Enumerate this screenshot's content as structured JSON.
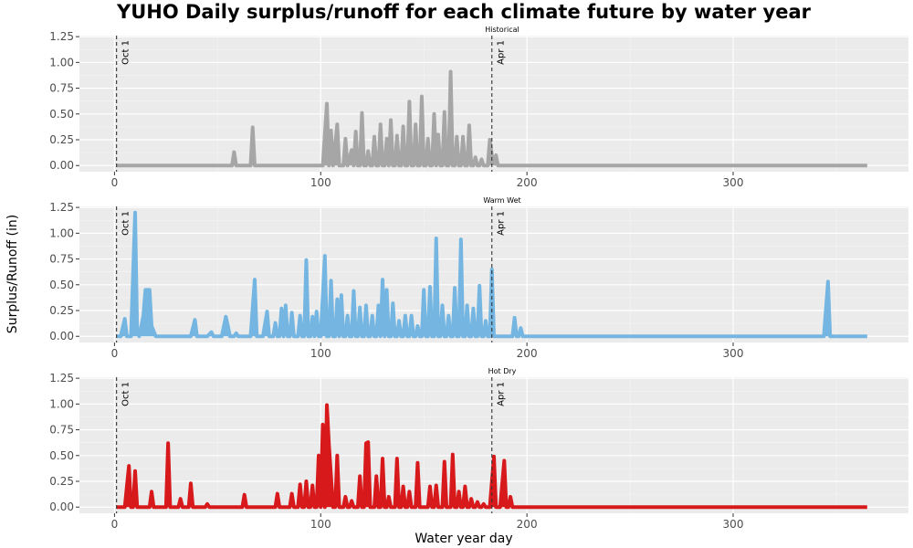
{
  "title": "YUHO Daily surplus/runoff for each climate future by water year",
  "xlabel": "Water year day",
  "ylabel": "Surplus/Runoff (in)",
  "chart_data": [
    {
      "type": "area",
      "panel_title": "Historical",
      "color": "#A6A6A6",
      "xlim": [
        -17,
        385
      ],
      "ylim": [
        -0.06,
        1.26
      ],
      "x_ticks": [
        0,
        100,
        200,
        300
      ],
      "y_ticks": [
        "0.00",
        "0.25",
        "0.50",
        "0.75",
        "1.00",
        "1.25"
      ],
      "vlines": [
        {
          "x": 1,
          "label": "Oct 1"
        },
        {
          "x": 183,
          "label": "Apr 1"
        }
      ],
      "x_range": [
        1,
        365
      ],
      "points": [
        [
          57,
          0
        ],
        [
          58,
          0.13
        ],
        [
          59,
          0
        ],
        [
          66,
          0
        ],
        [
          67,
          0.37
        ],
        [
          68,
          0
        ],
        [
          101,
          0
        ],
        [
          103,
          0.6
        ],
        [
          104,
          0
        ],
        [
          105,
          0.34
        ],
        [
          106,
          0
        ],
        [
          108,
          0.4
        ],
        [
          109,
          0
        ],
        [
          111,
          0
        ],
        [
          112,
          0.26
        ],
        [
          113,
          0
        ],
        [
          115,
          0.15
        ],
        [
          116,
          0
        ],
        [
          117,
          0.33
        ],
        [
          118,
          0
        ],
        [
          119,
          0
        ],
        [
          120,
          0.51
        ],
        [
          121,
          0
        ],
        [
          122,
          0
        ],
        [
          123,
          0.14
        ],
        [
          124,
          0
        ],
        [
          125,
          0
        ],
        [
          126,
          0.28
        ],
        [
          127,
          0
        ],
        [
          128,
          0
        ],
        [
          129,
          0.4
        ],
        [
          130,
          0
        ],
        [
          131,
          0
        ],
        [
          132,
          0.26
        ],
        [
          133,
          0
        ],
        [
          134,
          0.44
        ],
        [
          135,
          0
        ],
        [
          136,
          0
        ],
        [
          137,
          0.29
        ],
        [
          138,
          0
        ],
        [
          139,
          0
        ],
        [
          140,
          0.38
        ],
        [
          141,
          0
        ],
        [
          142,
          0
        ],
        [
          143,
          0.62
        ],
        [
          144,
          0
        ],
        [
          145,
          0
        ],
        [
          146,
          0.4
        ],
        [
          147,
          0
        ],
        [
          148,
          0
        ],
        [
          149,
          0.67
        ],
        [
          150,
          0
        ],
        [
          151,
          0
        ],
        [
          152,
          0.26
        ],
        [
          153,
          0
        ],
        [
          154,
          0
        ],
        [
          155,
          0.5
        ],
        [
          156,
          0
        ],
        [
          157,
          0.3
        ],
        [
          158,
          0
        ],
        [
          159,
          0
        ],
        [
          160,
          0.52
        ],
        [
          161,
          0
        ],
        [
          162,
          0
        ],
        [
          163,
          0.91
        ],
        [
          164,
          0
        ],
        [
          165,
          0
        ],
        [
          166,
          0.28
        ],
        [
          167,
          0
        ],
        [
          168,
          0
        ],
        [
          169,
          0.28
        ],
        [
          170,
          0
        ],
        [
          171,
          0
        ],
        [
          172,
          0.39
        ],
        [
          173,
          0
        ],
        [
          174,
          0
        ],
        [
          175,
          0.08
        ],
        [
          176,
          0
        ],
        [
          177,
          0
        ],
        [
          178,
          0.06
        ],
        [
          179,
          0
        ],
        [
          181,
          0
        ],
        [
          182,
          0.25
        ],
        [
          183,
          0.1
        ],
        [
          184,
          0.03
        ],
        [
          185,
          0.1
        ],
        [
          186,
          0
        ]
      ]
    },
    {
      "type": "area",
      "panel_title": "Warm Wet",
      "color": "#74B6E1",
      "xlim": [
        -17,
        385
      ],
      "ylim": [
        -0.06,
        1.26
      ],
      "x_ticks": [
        0,
        100,
        200,
        300
      ],
      "y_ticks": [
        "0.00",
        "0.25",
        "0.50",
        "0.75",
        "1.00",
        "1.25"
      ],
      "vlines": [
        {
          "x": 1,
          "label": "Oct 1"
        },
        {
          "x": 183,
          "label": "Apr 1"
        }
      ],
      "x_range": [
        1,
        365
      ],
      "points": [
        [
          3,
          0
        ],
        [
          5,
          0.17
        ],
        [
          6,
          0
        ],
        [
          8,
          0
        ],
        [
          10,
          1.2
        ],
        [
          11,
          0.05
        ],
        [
          12,
          0
        ],
        [
          14,
          0.2
        ],
        [
          15,
          0.45
        ],
        [
          17,
          0.45
        ],
        [
          18,
          0.1
        ],
        [
          19,
          0.05
        ],
        [
          20,
          0
        ],
        [
          37,
          0
        ],
        [
          39,
          0.16
        ],
        [
          40,
          0
        ],
        [
          45,
          0
        ],
        [
          47,
          0.04
        ],
        [
          48,
          0
        ],
        [
          52,
          0
        ],
        [
          54,
          0.19
        ],
        [
          55,
          0.1
        ],
        [
          56,
          0
        ],
        [
          58,
          0
        ],
        [
          59,
          0.03
        ],
        [
          60,
          0
        ],
        [
          66,
          0
        ],
        [
          68,
          0.55
        ],
        [
          69,
          0
        ],
        [
          72,
          0
        ],
        [
          74,
          0.24
        ],
        [
          75,
          0
        ],
        [
          77,
          0
        ],
        [
          78,
          0.13
        ],
        [
          79,
          0
        ],
        [
          80,
          0
        ],
        [
          81,
          0.27
        ],
        [
          82,
          0
        ],
        [
          83,
          0.3
        ],
        [
          84,
          0
        ],
        [
          85,
          0
        ],
        [
          86,
          0.23
        ],
        [
          87,
          0
        ],
        [
          89,
          0
        ],
        [
          90,
          0.2
        ],
        [
          91,
          0
        ],
        [
          92,
          0
        ],
        [
          93,
          0.74
        ],
        [
          94,
          0
        ],
        [
          95,
          0
        ],
        [
          96,
          0.19
        ],
        [
          97,
          0
        ],
        [
          98,
          0.24
        ],
        [
          99,
          0
        ],
        [
          100,
          0
        ],
        [
          102,
          0.78
        ],
        [
          103,
          0
        ],
        [
          104,
          0
        ],
        [
          105,
          0.54
        ],
        [
          106,
          0
        ],
        [
          107,
          0
        ],
        [
          108,
          0.36
        ],
        [
          109,
          0
        ],
        [
          110,
          0.4
        ],
        [
          111,
          0
        ],
        [
          112,
          0
        ],
        [
          113,
          0.2
        ],
        [
          114,
          0
        ],
        [
          115,
          0
        ],
        [
          116,
          0.44
        ],
        [
          117,
          0
        ],
        [
          118,
          0
        ],
        [
          119,
          0.28
        ],
        [
          120,
          0
        ],
        [
          121,
          0
        ],
        [
          122,
          0.3
        ],
        [
          123,
          0
        ],
        [
          124,
          0
        ],
        [
          125,
          0.2
        ],
        [
          126,
          0
        ],
        [
          127,
          0
        ],
        [
          128,
          0.3
        ],
        [
          129,
          0
        ],
        [
          130,
          0.55
        ],
        [
          131,
          0
        ],
        [
          132,
          0.45
        ],
        [
          133,
          0
        ],
        [
          134,
          0
        ],
        [
          135,
          0.32
        ],
        [
          136,
          0
        ],
        [
          137,
          0
        ],
        [
          138,
          0.15
        ],
        [
          139,
          0
        ],
        [
          140,
          0
        ],
        [
          141,
          0.2
        ],
        [
          142,
          0
        ],
        [
          143,
          0
        ],
        [
          144,
          0.2
        ],
        [
          145,
          0
        ],
        [
          146,
          0
        ],
        [
          147,
          0.1
        ],
        [
          148,
          0
        ],
        [
          149,
          0
        ],
        [
          150,
          0.45
        ],
        [
          151,
          0
        ],
        [
          152,
          0
        ],
        [
          153,
          0.48
        ],
        [
          154,
          0
        ],
        [
          155,
          0
        ],
        [
          156,
          0.95
        ],
        [
          157,
          0
        ],
        [
          158,
          0
        ],
        [
          159,
          0.3
        ],
        [
          160,
          0
        ],
        [
          161,
          0
        ],
        [
          162,
          0.2
        ],
        [
          163,
          0
        ],
        [
          164,
          0
        ],
        [
          165,
          0.47
        ],
        [
          166,
          0
        ],
        [
          167,
          0
        ],
        [
          168,
          0.94
        ],
        [
          169,
          0
        ],
        [
          170,
          0
        ],
        [
          171,
          0.3
        ],
        [
          172,
          0
        ],
        [
          173,
          0
        ],
        [
          174,
          0.27
        ],
        [
          175,
          0
        ],
        [
          176,
          0
        ],
        [
          177,
          0.49
        ],
        [
          178,
          0
        ],
        [
          179,
          0
        ],
        [
          180,
          0.15
        ],
        [
          181,
          0
        ],
        [
          182,
          0
        ],
        [
          183,
          0.65
        ],
        [
          184,
          0
        ],
        [
          193,
          0
        ],
        [
          194,
          0.18
        ],
        [
          195,
          0
        ],
        [
          196,
          0
        ],
        [
          197,
          0.08
        ],
        [
          198,
          0
        ],
        [
          344,
          0
        ],
        [
          346,
          0.53
        ],
        [
          347,
          0
        ]
      ]
    },
    {
      "type": "area",
      "panel_title": "Hot Dry",
      "color": "#D7191C",
      "xlim": [
        -17,
        385
      ],
      "ylim": [
        -0.06,
        1.26
      ],
      "x_ticks": [
        0,
        100,
        200,
        300
      ],
      "y_ticks": [
        "0.00",
        "0.25",
        "0.50",
        "0.75",
        "1.00",
        "1.25"
      ],
      "vlines": [
        {
          "x": 1,
          "label": "Oct 1"
        },
        {
          "x": 183,
          "label": "Apr 1"
        }
      ],
      "x_range": [
        1,
        365
      ],
      "points": [
        [
          5,
          0
        ],
        [
          7,
          0.4
        ],
        [
          8,
          0
        ],
        [
          9,
          0
        ],
        [
          10,
          0.35
        ],
        [
          11,
          0
        ],
        [
          17,
          0
        ],
        [
          18,
          0.15
        ],
        [
          19,
          0
        ],
        [
          25,
          0
        ],
        [
          26,
          0.62
        ],
        [
          27,
          0
        ],
        [
          31,
          0
        ],
        [
          32,
          0.08
        ],
        [
          33,
          0
        ],
        [
          36,
          0
        ],
        [
          37,
          0.23
        ],
        [
          38,
          0
        ],
        [
          44,
          0
        ],
        [
          45,
          0.03
        ],
        [
          46,
          0
        ],
        [
          62,
          0
        ],
        [
          63,
          0.12
        ],
        [
          64,
          0
        ],
        [
          78,
          0
        ],
        [
          79,
          0.13
        ],
        [
          80,
          0
        ],
        [
          85,
          0
        ],
        [
          86,
          0.13
        ],
        [
          87,
          0
        ],
        [
          89,
          0
        ],
        [
          90,
          0.22
        ],
        [
          91,
          0
        ],
        [
          92,
          0
        ],
        [
          93,
          0.25
        ],
        [
          94,
          0
        ],
        [
          95,
          0
        ],
        [
          96,
          0.21
        ],
        [
          97,
          0
        ],
        [
          98,
          0
        ],
        [
          99,
          0.5
        ],
        [
          100,
          0
        ],
        [
          101,
          0.8
        ],
        [
          102,
          0
        ],
        [
          103,
          0.99
        ],
        [
          104,
          0.6
        ],
        [
          105,
          0.3
        ],
        [
          106,
          0
        ],
        [
          107,
          0
        ],
        [
          108,
          0.5
        ],
        [
          109,
          0
        ],
        [
          111,
          0
        ],
        [
          112,
          0.1
        ],
        [
          113,
          0
        ],
        [
          114,
          0
        ],
        [
          115,
          0.06
        ],
        [
          116,
          0
        ],
        [
          118,
          0
        ],
        [
          119,
          0.3
        ],
        [
          120,
          0
        ],
        [
          121,
          0
        ],
        [
          122,
          0.62
        ],
        [
          123,
          0.63
        ],
        [
          124,
          0
        ],
        [
          126,
          0
        ],
        [
          127,
          0.3
        ],
        [
          128,
          0
        ],
        [
          129,
          0
        ],
        [
          130,
          0.47
        ],
        [
          131,
          0
        ],
        [
          132,
          0
        ],
        [
          133,
          0.1
        ],
        [
          134,
          0
        ],
        [
          136,
          0
        ],
        [
          137,
          0.47
        ],
        [
          138,
          0
        ],
        [
          139,
          0
        ],
        [
          140,
          0.2
        ],
        [
          141,
          0
        ],
        [
          142,
          0
        ],
        [
          143,
          0.15
        ],
        [
          144,
          0
        ],
        [
          146,
          0
        ],
        [
          147,
          0.43
        ],
        [
          148,
          0
        ],
        [
          152,
          0
        ],
        [
          153,
          0.2
        ],
        [
          154,
          0
        ],
        [
          155,
          0
        ],
        [
          156,
          0.21
        ],
        [
          157,
          0
        ],
        [
          159,
          0
        ],
        [
          160,
          0.44
        ],
        [
          161,
          0
        ],
        [
          163,
          0
        ],
        [
          164,
          0.51
        ],
        [
          165,
          0
        ],
        [
          166,
          0
        ],
        [
          167,
          0.15
        ],
        [
          168,
          0
        ],
        [
          169,
          0
        ],
        [
          170,
          0.2
        ],
        [
          171,
          0
        ],
        [
          172,
          0
        ],
        [
          173,
          0.08
        ],
        [
          174,
          0
        ],
        [
          175,
          0
        ],
        [
          176,
          0.05
        ],
        [
          177,
          0
        ],
        [
          178,
          0
        ],
        [
          179,
          0.03
        ],
        [
          180,
          0
        ],
        [
          182,
          0
        ],
        [
          184,
          0.49
        ],
        [
          185,
          0
        ],
        [
          187,
          0
        ],
        [
          189,
          0.45
        ],
        [
          190,
          0
        ],
        [
          191,
          0
        ],
        [
          192,
          0.1
        ],
        [
          193,
          0
        ]
      ]
    }
  ]
}
